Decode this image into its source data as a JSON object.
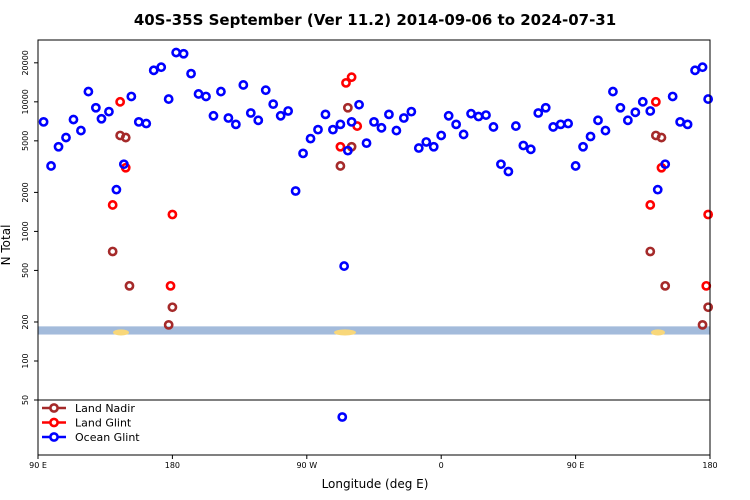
{
  "chart_data": {
    "type": "scatter",
    "title": "40S-35S September (Ver 11.2)   2014-09-06 to 2024-07-31",
    "xlabel": "Longitude (deg E)",
    "ylabel": "N Total",
    "y_scale": "log",
    "ylim": [
      50,
      30000
    ],
    "xlim": [
      90,
      450
    ],
    "x_ticks": [
      {
        "value": 90,
        "label": "90 E"
      },
      {
        "value": 162,
        "label": "180"
      },
      {
        "value": 234,
        "label": "90 W"
      },
      {
        "value": 306,
        "label": "0"
      },
      {
        "value": 378,
        "label": "90 E"
      },
      {
        "value": 450,
        "label": "180"
      }
    ],
    "y_ticks": [
      50,
      100,
      200,
      500,
      1000,
      2000,
      5000,
      10000,
      20000
    ],
    "y_tick_labels": [
      "50",
      "100",
      "200",
      "500",
      "1000",
      "2000",
      "5000",
      "10000",
      "20000"
    ],
    "legend_position": "bottom-left",
    "band": {
      "y_low": 160,
      "y_high": 185,
      "color": "#a3bbdb"
    },
    "series": [
      {
        "name": "Land Nadir",
        "color": "#a52a2a",
        "points": [
          [
            130,
            700
          ],
          [
            134,
            5500
          ],
          [
            137,
            5300
          ],
          [
            139,
            380
          ],
          [
            160,
            190
          ],
          [
            162,
            260
          ],
          [
            252,
            3200
          ],
          [
            256,
            9000
          ],
          [
            258,
            4500
          ],
          [
            418,
            700
          ],
          [
            421,
            5500
          ],
          [
            424,
            5300
          ],
          [
            426,
            380
          ],
          [
            446,
            190
          ],
          [
            449,
            260
          ]
        ]
      },
      {
        "name": "Land Glint",
        "color": "#ff0000",
        "points": [
          [
            130,
            1600
          ],
          [
            134,
            10000
          ],
          [
            137,
            3100
          ],
          [
            161,
            380
          ],
          [
            162,
            1350
          ],
          [
            252,
            4500
          ],
          [
            255,
            14000
          ],
          [
            258,
            15500
          ],
          [
            261,
            6500
          ],
          [
            418,
            1600
          ],
          [
            421,
            10000
          ],
          [
            424,
            3100
          ],
          [
            448,
            380
          ],
          [
            449,
            1350
          ]
        ]
      },
      {
        "name": "Ocean Glint",
        "color": "#0000ff",
        "points": [
          [
            93,
            7000
          ],
          [
            97,
            3200
          ],
          [
            101,
            4500
          ],
          [
            105,
            5300
          ],
          [
            109,
            7300
          ],
          [
            113,
            6000
          ],
          [
            117,
            12000
          ],
          [
            121,
            9000
          ],
          [
            124,
            7400
          ],
          [
            128,
            8400
          ],
          [
            132,
            2100
          ],
          [
            136,
            3300
          ],
          [
            140,
            11000
          ],
          [
            144,
            7000
          ],
          [
            148,
            6800
          ],
          [
            152,
            17500
          ],
          [
            156,
            18500
          ],
          [
            160,
            10500
          ],
          [
            164,
            24000
          ],
          [
            168,
            23500
          ],
          [
            172,
            16500
          ],
          [
            176,
            11500
          ],
          [
            180,
            11000
          ],
          [
            184,
            7800
          ],
          [
            188,
            12000
          ],
          [
            192,
            7500
          ],
          [
            196,
            6700
          ],
          [
            200,
            13500
          ],
          [
            204,
            8200
          ],
          [
            208,
            7200
          ],
          [
            212,
            12300
          ],
          [
            216,
            9600
          ],
          [
            220,
            7800
          ],
          [
            224,
            8500
          ],
          [
            228,
            2050
          ],
          [
            232,
            4000
          ],
          [
            236,
            5200
          ],
          [
            240,
            6100
          ],
          [
            244,
            8000
          ],
          [
            248,
            6100
          ],
          [
            252,
            6700
          ],
          [
            256,
            4200
          ],
          [
            258,
            7000
          ],
          [
            262,
            9500
          ],
          [
            266,
            4800
          ],
          [
            270,
            7000
          ],
          [
            274,
            6300
          ],
          [
            278,
            8000
          ],
          [
            282,
            6000
          ],
          [
            286,
            7500
          ],
          [
            290,
            8400
          ],
          [
            294,
            4400
          ],
          [
            298,
            4900
          ],
          [
            302,
            4500
          ],
          [
            306,
            5500
          ],
          [
            310,
            7800
          ],
          [
            314,
            6700
          ],
          [
            318,
            5600
          ],
          [
            322,
            8100
          ],
          [
            326,
            7700
          ],
          [
            330,
            7900
          ],
          [
            334,
            6400
          ],
          [
            338,
            3300
          ],
          [
            342,
            2900
          ],
          [
            346,
            6500
          ],
          [
            350,
            4600
          ],
          [
            354,
            4300
          ],
          [
            358,
            8200
          ],
          [
            362,
            9000
          ],
          [
            366,
            6400
          ],
          [
            370,
            6700
          ],
          [
            374,
            6800
          ],
          [
            378,
            3200
          ],
          [
            382,
            4500
          ],
          [
            386,
            5400
          ],
          [
            390,
            7200
          ],
          [
            394,
            6000
          ],
          [
            398,
            12000
          ],
          [
            402,
            9000
          ],
          [
            406,
            7200
          ],
          [
            410,
            8300
          ],
          [
            414,
            10000
          ],
          [
            418,
            8500
          ],
          [
            422,
            2100
          ],
          [
            426,
            3300
          ],
          [
            430,
            11000
          ],
          [
            434,
            7000
          ],
          [
            438,
            6700
          ],
          [
            442,
            17500
          ],
          [
            446,
            18500
          ],
          [
            449,
            10500
          ],
          [
            254,
            540
          ],
          [
            253,
            40
          ]
        ]
      }
    ]
  },
  "legend": [
    {
      "label": "Land Nadir",
      "color": "#a52a2a"
    },
    {
      "label": "Land Glint",
      "color": "#ff0000"
    },
    {
      "label": "Ocean Glint",
      "color": "#0000ff"
    }
  ]
}
